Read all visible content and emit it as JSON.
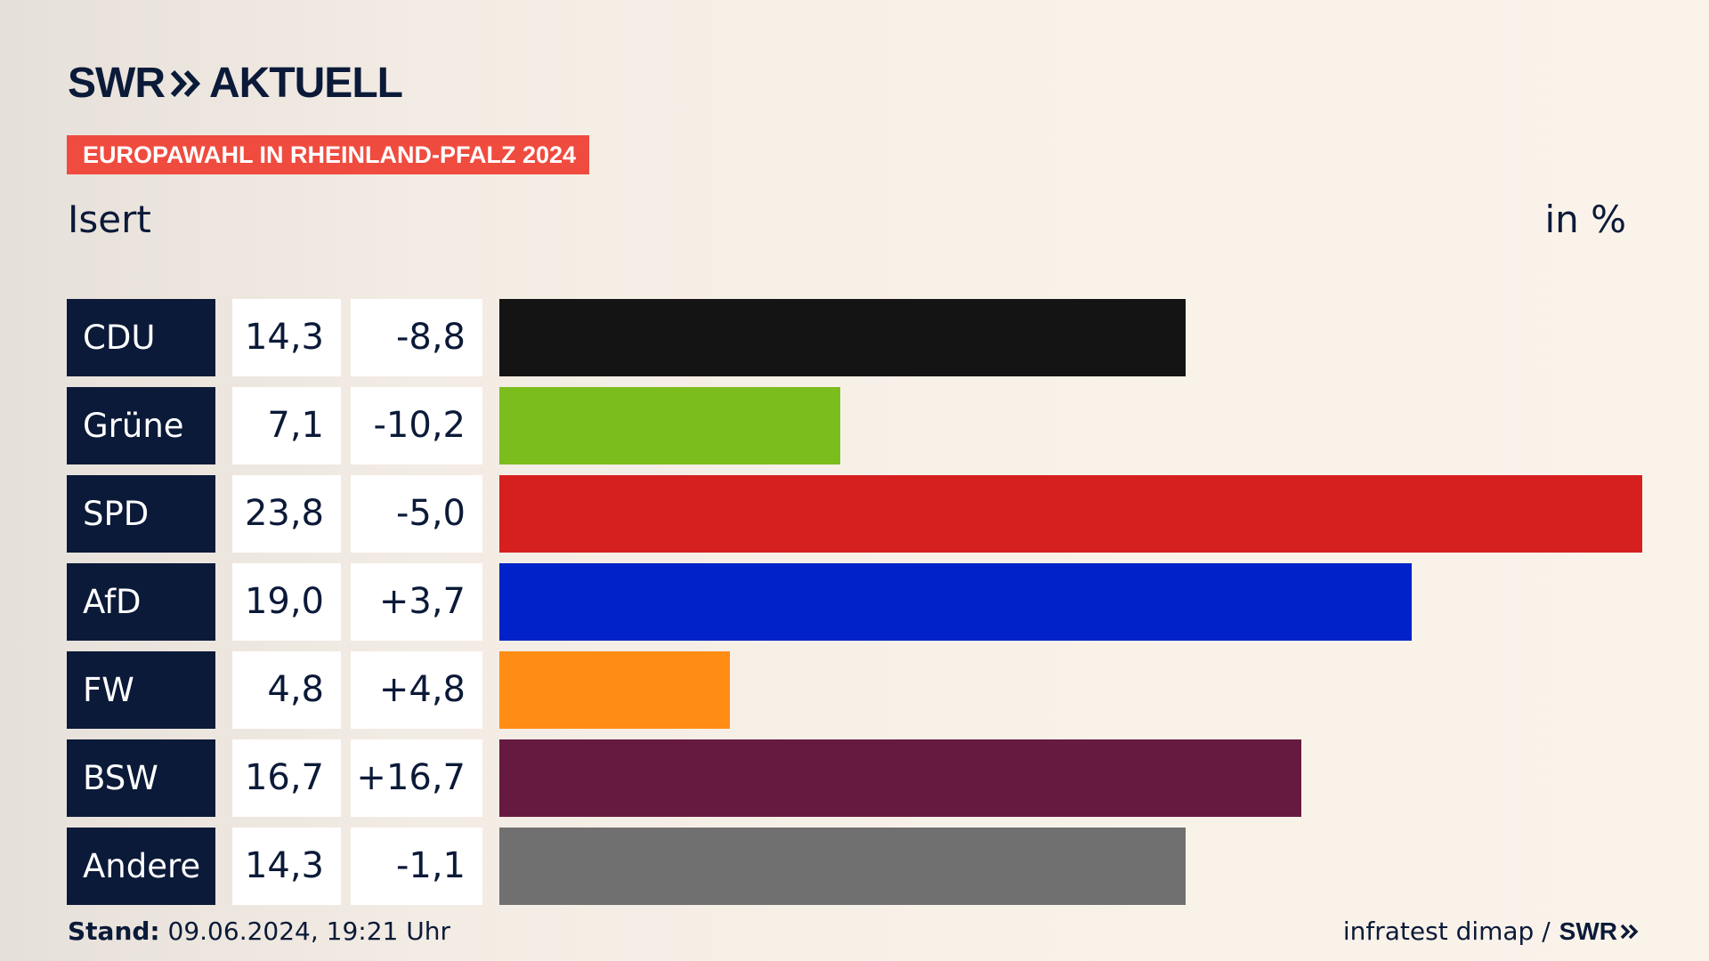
{
  "header": {
    "logo_swr": "SWR",
    "logo_aktuell": "AKTUELL",
    "banner": "EUROPAWAHL IN RHEINLAND-PFALZ 2024",
    "region": "Isert",
    "unit": "in %"
  },
  "chart_data": {
    "type": "bar",
    "orientation": "horizontal",
    "title": "EUROPAWAHL IN RHEINLAND-PFALZ 2024",
    "subtitle": "Isert",
    "unit": "in %",
    "categories": [
      "CDU",
      "Grüne",
      "SPD",
      "AfD",
      "FW",
      "BSW",
      "Andere"
    ],
    "values": [
      14.3,
      7.1,
      23.8,
      19.0,
      4.8,
      16.7,
      14.3
    ],
    "value_labels": [
      "14,3",
      "7,1",
      "23,8",
      "19,0",
      "4,8",
      "16,7",
      "14,3"
    ],
    "change_labels": [
      "-8,8",
      "-10,2",
      "-5,0",
      "+3,7",
      "+4,8",
      "+16,7",
      "-1,1"
    ],
    "changes": [
      -8.8,
      -10.2,
      -5.0,
      3.7,
      4.8,
      16.7,
      -1.1
    ],
    "colors": [
      "#141414",
      "#7bbd1d",
      "#d62020",
      "#0022c8",
      "#ff8c15",
      "#661a40",
      "#707070"
    ],
    "xlim": [
      0,
      23.8
    ],
    "grid": false,
    "legend": "none"
  },
  "footer": {
    "stand_label": "Stand:",
    "stand_value": "09.06.2024, 19:21 Uhr",
    "source": "infratest dimap /",
    "source_logo": "SWR"
  }
}
